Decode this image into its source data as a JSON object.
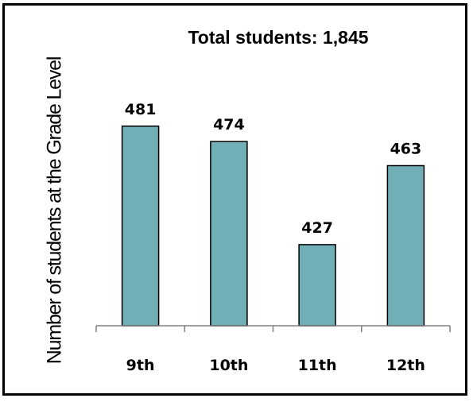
{
  "chart_data": {
    "type": "bar",
    "title": "Total students: 1,845",
    "ylabel": "Number of students at the Grade Level",
    "xlabel": "",
    "categories": [
      "9th",
      "10th",
      "11th",
      "12th"
    ],
    "values": [
      481,
      474,
      427,
      463
    ],
    "value_labels": [
      "481",
      "474",
      "427",
      "463"
    ],
    "ylim": [
      390,
      490
    ],
    "grid": false,
    "legend": "none",
    "bar_color": "#72AEB5"
  }
}
